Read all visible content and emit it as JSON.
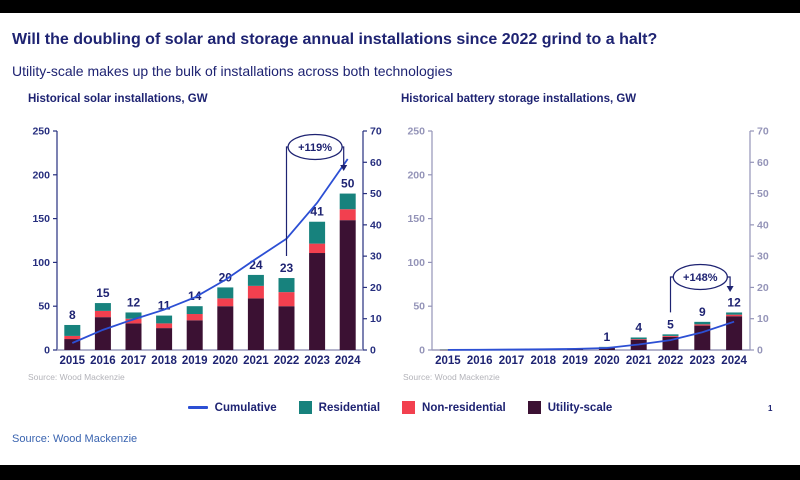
{
  "header": {
    "title": "Will the doubling of solar and storage annual installations since 2022 grind to a halt?",
    "subtitle": "Utility-scale makes up the bulk of installations across both technologies"
  },
  "colors": {
    "navy": "#1e2372",
    "line_blue": "#2c4fd4",
    "teal": "#17827d",
    "red": "#f2404f",
    "maroon": "#3b1133",
    "baseline_grey": "#9a9abb",
    "muted_axis": "#9494b8",
    "source_grey": "#b3b3b9",
    "footer_blue": "#3a64b0"
  },
  "chart_data": [
    {
      "type": "bar",
      "title": "Historical solar installations, GW",
      "source": "Source: Wood Mackenzie",
      "categories": [
        "2015",
        "2016",
        "2017",
        "2018",
        "2019",
        "2020",
        "2021",
        "2022",
        "2023",
        "2024"
      ],
      "series": [
        {
          "name": "Utility-scale",
          "color": "#3b1133",
          "values": [
            3.5,
            10.5,
            8.5,
            7,
            9.5,
            14,
            16.5,
            14,
            31,
            41.5
          ]
        },
        {
          "name": "Non-residential",
          "color": "#f2404f",
          "values": [
            1,
            2,
            1.5,
            1.5,
            2,
            2.5,
            4,
            4.5,
            3,
            3.5
          ]
        },
        {
          "name": "Residential",
          "color": "#17827d",
          "values": [
            3.5,
            2.5,
            2,
            2.5,
            2.5,
            3.5,
            3.5,
            4.5,
            7,
            5
          ]
        }
      ],
      "bar_labels": [
        "8",
        "15",
        "12",
        "11",
        "14",
        "20",
        "24",
        "23",
        "41",
        "50"
      ],
      "cumulative": {
        "name": "Cumulative",
        "color": "#2c4fd4",
        "values": [
          8,
          23,
          35,
          46,
          60,
          80,
          104,
          127,
          168,
          218
        ]
      },
      "left_axis": {
        "min": 0,
        "max": 250,
        "step": 50,
        "label_color": "#262e7e"
      },
      "right_axis": {
        "min": 0,
        "max": 70,
        "step": 10,
        "label_color": "#262e7e"
      },
      "annotation": {
        "label": "+119%",
        "from_index": 7,
        "to_index": 9
      }
    },
    {
      "type": "bar",
      "title": "Historical battery storage installations, GW",
      "source": "Source: Wood Mackenzie",
      "categories": [
        "2015",
        "2016",
        "2017",
        "2018",
        "2019",
        "2020",
        "2021",
        "2022",
        "2023",
        "2024"
      ],
      "series": [
        {
          "name": "Utility-scale",
          "color": "#3b1133",
          "values": [
            0.08,
            0.15,
            0.15,
            0.25,
            0.4,
            0.8,
            3.3,
            4.2,
            7.8,
            10.8
          ]
        },
        {
          "name": "Non-residential",
          "color": "#f2404f",
          "values": [
            0.01,
            0.02,
            0.02,
            0.02,
            0.05,
            0.05,
            0.2,
            0.3,
            0.4,
            0.5
          ]
        },
        {
          "name": "Residential",
          "color": "#17827d",
          "values": [
            0.01,
            0.03,
            0.03,
            0.03,
            0.05,
            0.15,
            0.5,
            0.5,
            0.8,
            0.7
          ]
        }
      ],
      "bar_labels": [
        "",
        "",
        "",
        "",
        "",
        "1",
        "4",
        "5",
        "9",
        "12"
      ],
      "cumulative": {
        "name": "Cumulative",
        "color": "#2c4fd4",
        "values": [
          0.1,
          0.3,
          0.5,
          0.8,
          1.3,
          2.3,
          6.3,
          11.3,
          20.3,
          32.3
        ]
      },
      "left_axis": {
        "min": 0,
        "max": 250,
        "step": 50,
        "label_color": "#9494b8"
      },
      "right_axis": {
        "min": 0,
        "max": 70,
        "step": 10,
        "label_color": "#9494b8"
      },
      "annotation": {
        "label": "+148%",
        "from_index": 7,
        "to_index": 9
      }
    }
  ],
  "legend": {
    "items": [
      {
        "label": "Cumulative",
        "type": "line",
        "color": "#2c4fd4"
      },
      {
        "label": "Residential",
        "type": "swatch",
        "color": "#17827d"
      },
      {
        "label": "Non-residential",
        "type": "swatch",
        "color": "#f2404f"
      },
      {
        "label": "Utility-scale",
        "type": "swatch",
        "color": "#3b1133"
      }
    ]
  },
  "footer": {
    "source": "Source: Wood Mackenzie",
    "page_number": "1"
  }
}
